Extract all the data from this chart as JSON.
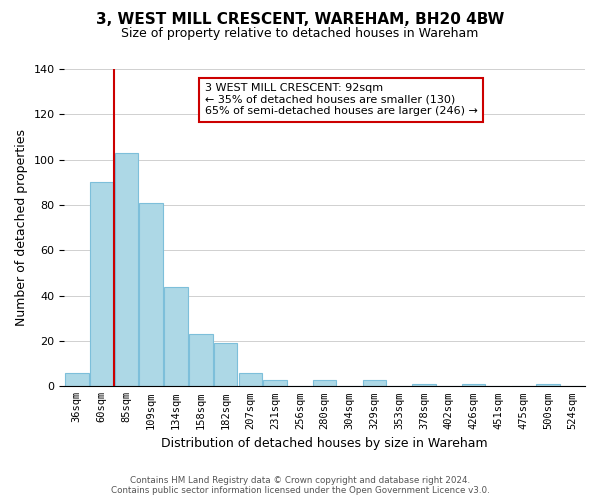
{
  "title": "3, WEST MILL CRESCENT, WAREHAM, BH20 4BW",
  "subtitle": "Size of property relative to detached houses in Wareham",
  "xlabel": "Distribution of detached houses by size in Wareham",
  "ylabel": "Number of detached properties",
  "bar_color": "#add8e6",
  "bar_edge_color": "#7dbfda",
  "background_color": "#ffffff",
  "grid_color": "#d0d0d0",
  "tick_labels": [
    "36sqm",
    "60sqm",
    "85sqm",
    "109sqm",
    "134sqm",
    "158sqm",
    "182sqm",
    "207sqm",
    "231sqm",
    "256sqm",
    "280sqm",
    "304sqm",
    "329sqm",
    "353sqm",
    "378sqm",
    "402sqm",
    "426sqm",
    "451sqm",
    "475sqm",
    "500sqm",
    "524sqm"
  ],
  "bar_heights": [
    6,
    90,
    103,
    81,
    44,
    23,
    19,
    6,
    3,
    0,
    3,
    0,
    3,
    0,
    1,
    0,
    1,
    0,
    0,
    1,
    0
  ],
  "ylim": [
    0,
    140
  ],
  "yticks": [
    0,
    20,
    40,
    60,
    80,
    100,
    120,
    140
  ],
  "property_line_label": "3 WEST MILL CRESCENT: 92sqm",
  "annotation_line1": "← 35% of detached houses are smaller (130)",
  "annotation_line2": "65% of semi-detached houses are larger (246) →",
  "footer_line1": "Contains HM Land Registry data © Crown copyright and database right 2024.",
  "footer_line2": "Contains public sector information licensed under the Open Government Licence v3.0.",
  "red_line_color": "#cc0000",
  "annotation_box_edge": "#cc0000",
  "figsize": [
    6.0,
    5.0
  ],
  "dpi": 100
}
